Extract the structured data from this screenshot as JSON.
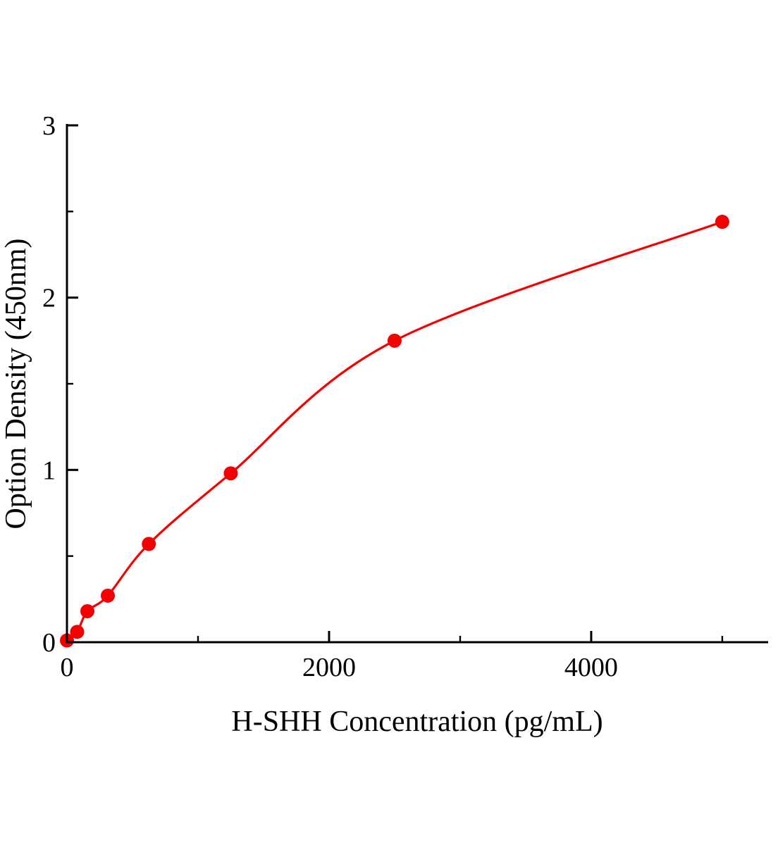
{
  "chart_data": {
    "type": "scatter",
    "title": "",
    "xlabel": "H-SHH Concentration (pg/mL)",
    "ylabel": "Option Density (450nm)",
    "x": [
      0,
      78,
      156,
      312,
      625,
      1250,
      2500,
      5000
    ],
    "y": [
      0.01,
      0.06,
      0.18,
      0.27,
      0.57,
      0.98,
      1.75,
      2.44
    ],
    "xlim": [
      0,
      5350
    ],
    "ylim": [
      0,
      3
    ],
    "x_ticks": [
      0,
      2000,
      4000
    ],
    "y_ticks": [
      0,
      1,
      2,
      3
    ],
    "x_minor_ticks": [
      1000,
      3000,
      5000
    ],
    "y_minor_ticks": [
      0.5,
      1.5,
      2.5
    ],
    "line_color": "#f40000",
    "marker_color": "#f40000",
    "axis_color": "#000000",
    "marker_radius": 10,
    "legend": "none",
    "grid": "off"
  }
}
